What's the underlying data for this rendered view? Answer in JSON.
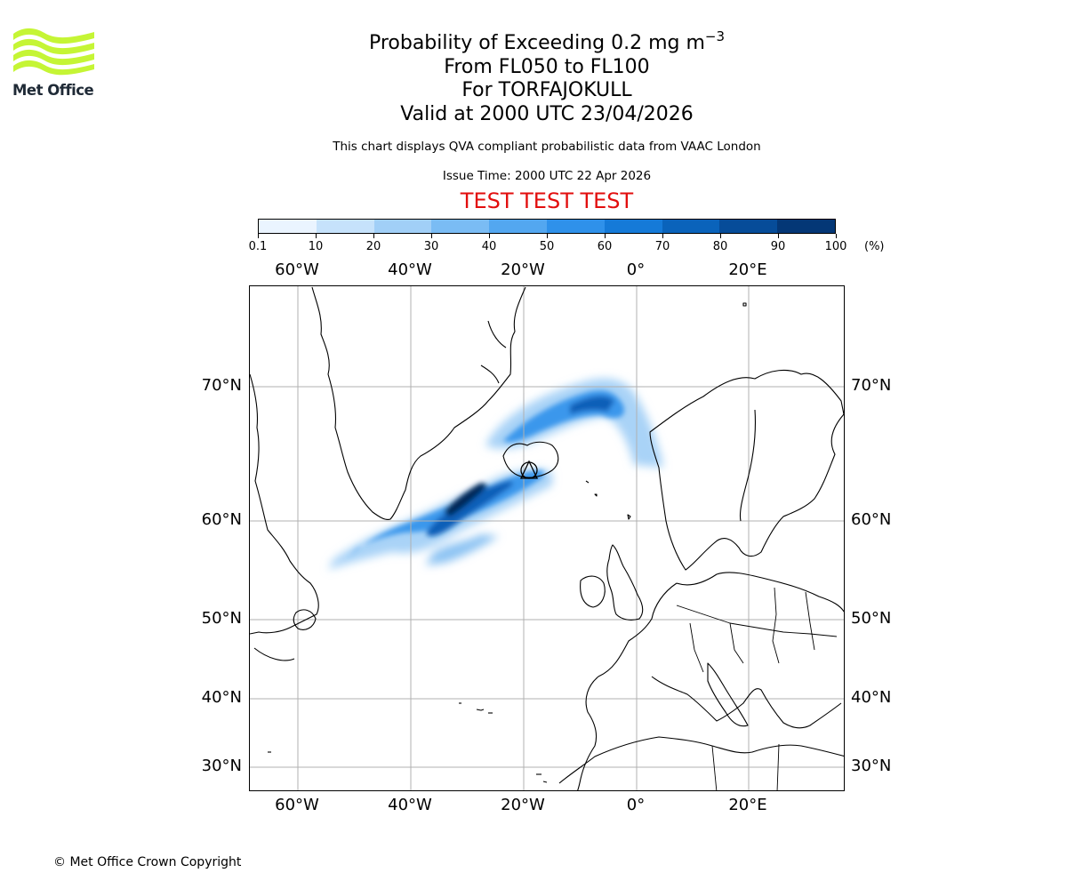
{
  "logo": {
    "text": "Met Office",
    "color": "#c5f535"
  },
  "title": {
    "main": "Probability of Exceeding 0.2 mg m",
    "main_sup": "−3",
    "levels": "From FL050 to FL100",
    "volcano": "For TORFAJOKULL",
    "valid": "Valid at 2000 UTC 23/04/2026"
  },
  "subtitle": "This chart displays QVA compliant probabilistic data from VAAC London",
  "issue_time": "Issue Time: 2000 UTC 22 Apr 2026",
  "test_banner": {
    "text": "TEST TEST TEST",
    "color": "#e20e0e"
  },
  "colorbar": {
    "ticks": [
      "0.1",
      "10",
      "20",
      "30",
      "40",
      "50",
      "60",
      "70",
      "80",
      "90",
      "100"
    ],
    "unit": "(%)",
    "colors": [
      "#eaf4ff",
      "#c6e2fb",
      "#a1cff7",
      "#7abcf4",
      "#53a7f0",
      "#2f91ea",
      "#157ad8",
      "#0a63bb",
      "#064c99",
      "#043776",
      "#032657"
    ]
  },
  "map": {
    "lon_labels": [
      "60°W",
      "40°W",
      "20°W",
      "0°",
      "20°E"
    ],
    "lat_labels": [
      "70°N",
      "60°N",
      "50°N",
      "40°N",
      "30°N"
    ],
    "lon_values": [
      -60,
      -40,
      -20,
      0,
      20
    ],
    "lat_values": [
      70,
      60,
      50,
      40,
      30
    ],
    "volcano_symbol": "triangle"
  },
  "copyright": "© Met Office Crown Copyright"
}
